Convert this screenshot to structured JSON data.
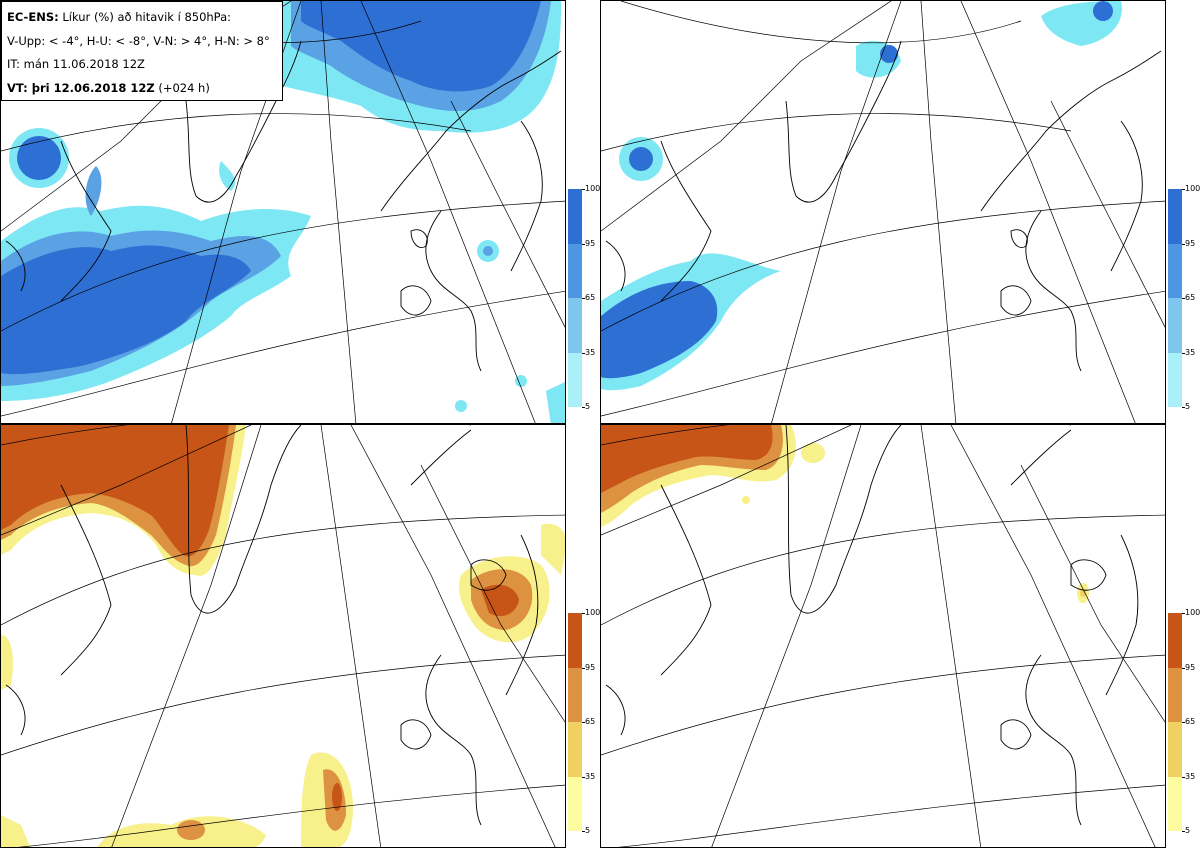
{
  "header": {
    "model": "EC-ENS:",
    "title": "Líkur (%) að hitavik í 850hPa:",
    "thresholds": "V-Upp: < -4°, H-U: < -8°, V-N: > 4°, H-N: > 8°",
    "initial_time": "IT: mán 11.06.2018 12Z",
    "valid_label": "VT: þri 12.06.2018 12Z",
    "lead": "(+024 h)"
  },
  "colorbar_cold": {
    "ticks": [
      "100",
      "95",
      "65",
      "35",
      "5"
    ],
    "colors": [
      "#2e6fd4",
      "#4f96e2",
      "#7fc6ee",
      "#aaf0f8"
    ]
  },
  "colorbar_warm": {
    "ticks": [
      "100",
      "95",
      "65",
      "35",
      "5"
    ],
    "colors": [
      "#c85518",
      "#dc9240",
      "#f0d060",
      "#fdfda0"
    ]
  },
  "colors": {
    "cold_strong": "#2e6fd4",
    "cold_mid": "#5aa2e4",
    "cold_light": "#7de8f4",
    "warm_strong": "#c85518",
    "warm_mid": "#dc9240",
    "warm_light": "#f8f08a"
  }
}
